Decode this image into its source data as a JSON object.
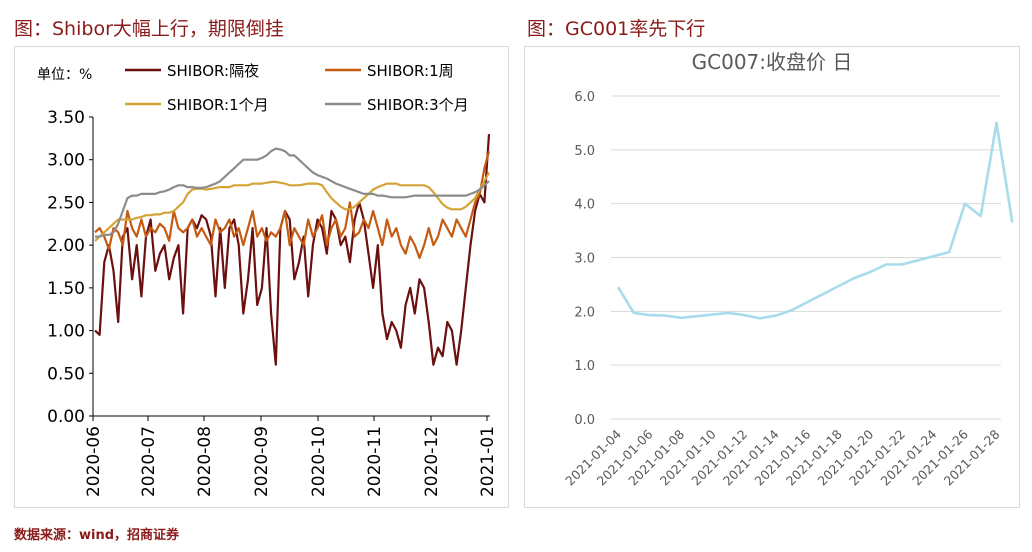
{
  "left_title": "图：Shibor大幅上行，期限倒挂",
  "right_title": "图：GC001率先下行",
  "source": "数据来源：wind，招商证券",
  "chart_data": [
    {
      "type": "line",
      "unit_label": "单位：%",
      "ylim": [
        0,
        3.5
      ],
      "y_ticks": [
        "0.00",
        "0.50",
        "1.00",
        "1.50",
        "2.00",
        "2.50",
        "3.00",
        "3.50"
      ],
      "x_ticks": [
        "2020-06",
        "2020-07",
        "2020-08",
        "2020-09",
        "2020-10",
        "2020-11",
        "2020-12",
        "2021-01"
      ],
      "legend": "top",
      "series": [
        {
          "name": "SHIBOR:隔夜",
          "color": "#6b0f0f",
          "values": [
            1.0,
            0.95,
            1.8,
            2.0,
            1.7,
            1.1,
            2.1,
            2.2,
            1.6,
            2.0,
            1.4,
            2.1,
            2.3,
            1.7,
            1.9,
            2.0,
            1.6,
            1.85,
            2.0,
            1.2,
            2.2,
            2.3,
            2.2,
            2.35,
            2.3,
            2.1,
            1.4,
            2.2,
            1.5,
            2.2,
            2.3,
            2.0,
            1.2,
            1.6,
            2.2,
            1.3,
            1.5,
            2.2,
            1.2,
            0.6,
            2.2,
            2.4,
            2.3,
            1.6,
            1.8,
            2.1,
            1.4,
            2.0,
            2.3,
            2.2,
            1.9,
            2.4,
            2.3,
            2.0,
            2.1,
            1.8,
            2.3,
            2.5,
            2.3,
            1.9,
            1.5,
            2.0,
            1.2,
            0.9,
            1.1,
            1.0,
            0.8,
            1.3,
            1.5,
            1.2,
            1.6,
            1.5,
            1.1,
            0.6,
            0.8,
            0.7,
            1.1,
            1.0,
            0.6,
            1.0,
            1.5,
            2.0,
            2.4,
            2.6,
            2.5,
            3.3
          ]
        },
        {
          "name": "SHIBOR:1周",
          "color": "#c55a11",
          "values": [
            2.15,
            2.2,
            2.1,
            1.95,
            2.2,
            2.15,
            2.0,
            2.4,
            2.2,
            2.1,
            2.3,
            2.1,
            2.2,
            2.15,
            2.25,
            2.2,
            2.05,
            2.4,
            2.2,
            2.15,
            2.2,
            2.3,
            2.1,
            2.2,
            2.1,
            2.0,
            2.3,
            2.15,
            2.2,
            2.3,
            2.1,
            2.2,
            2.0,
            2.2,
            2.4,
            2.1,
            2.2,
            2.05,
            2.15,
            2.1,
            2.2,
            2.4,
            2.0,
            2.2,
            2.1,
            2.0,
            2.3,
            2.1,
            2.2,
            2.35,
            2.0,
            2.2,
            2.3,
            2.1,
            2.2,
            2.5,
            2.1,
            2.15,
            2.3,
            2.2,
            2.4,
            2.2,
            2.0,
            2.3,
            2.1,
            2.2,
            2.0,
            1.9,
            2.1,
            2.0,
            1.85,
            2.0,
            2.2,
            2.0,
            2.1,
            2.3,
            2.2,
            2.1,
            2.3,
            2.2,
            2.1,
            2.3,
            2.5,
            2.6,
            2.9,
            3.1
          ]
        },
        {
          "name": "SHIBOR:1个月",
          "color": "#d4a437",
          "values": [
            2.05,
            2.1,
            2.15,
            2.2,
            2.25,
            2.3,
            2.3,
            2.3,
            2.3,
            2.32,
            2.33,
            2.35,
            2.35,
            2.36,
            2.36,
            2.38,
            2.38,
            2.4,
            2.45,
            2.5,
            2.6,
            2.65,
            2.66,
            2.66,
            2.65,
            2.66,
            2.67,
            2.68,
            2.68,
            2.68,
            2.7,
            2.7,
            2.7,
            2.7,
            2.72,
            2.72,
            2.72,
            2.73,
            2.74,
            2.74,
            2.73,
            2.72,
            2.7,
            2.7,
            2.7,
            2.71,
            2.72,
            2.72,
            2.72,
            2.7,
            2.62,
            2.55,
            2.5,
            2.45,
            2.42,
            2.42,
            2.45,
            2.5,
            2.55,
            2.6,
            2.65,
            2.68,
            2.7,
            2.72,
            2.72,
            2.72,
            2.7,
            2.7,
            2.7,
            2.7,
            2.7,
            2.7,
            2.68,
            2.62,
            2.55,
            2.48,
            2.44,
            2.42,
            2.42,
            2.42,
            2.45,
            2.5,
            2.55,
            2.65,
            2.75,
            2.85
          ]
        },
        {
          "name": "SHIBOR:3个月",
          "color": "#8c8c8c",
          "values": [
            2.1,
            2.1,
            2.12,
            2.12,
            2.15,
            2.25,
            2.4,
            2.55,
            2.58,
            2.58,
            2.6,
            2.6,
            2.6,
            2.6,
            2.62,
            2.63,
            2.65,
            2.68,
            2.7,
            2.7,
            2.68,
            2.68,
            2.67,
            2.67,
            2.68,
            2.7,
            2.72,
            2.75,
            2.8,
            2.85,
            2.9,
            2.95,
            3.0,
            3.0,
            3.0,
            3.0,
            3.02,
            3.05,
            3.1,
            3.13,
            3.12,
            3.1,
            3.05,
            3.05,
            3.0,
            2.95,
            2.9,
            2.85,
            2.82,
            2.8,
            2.78,
            2.75,
            2.72,
            2.7,
            2.68,
            2.66,
            2.64,
            2.62,
            2.6,
            2.6,
            2.6,
            2.58,
            2.58,
            2.57,
            2.56,
            2.56,
            2.56,
            2.56,
            2.57,
            2.58,
            2.58,
            2.58,
            2.58,
            2.58,
            2.58,
            2.58,
            2.58,
            2.58,
            2.58,
            2.58,
            2.58,
            2.6,
            2.62,
            2.65,
            2.7,
            2.75
          ]
        }
      ]
    },
    {
      "type": "line",
      "title": "GC007:收盘价 日",
      "ylim": [
        0,
        6
      ],
      "y_ticks": [
        "0.0",
        "1.0",
        "2.0",
        "3.0",
        "4.0",
        "5.0",
        "6.0"
      ],
      "x_ticks": [
        "2021-01-04",
        "2021-01-06",
        "2021-01-08",
        "2021-01-10",
        "2021-01-12",
        "2021-01-14",
        "2021-01-16",
        "2021-01-18",
        "2021-01-20",
        "2021-01-22",
        "2021-01-24",
        "2021-01-26",
        "2021-01-28"
      ],
      "series": [
        {
          "color": "#a8dcea",
          "x": [
            "2021-01-04",
            "2021-01-05",
            "2021-01-06",
            "2021-01-07",
            "2021-01-08",
            "2021-01-11",
            "2021-01-12",
            "2021-01-13",
            "2021-01-14",
            "2021-01-15",
            "2021-01-18",
            "2021-01-19",
            "2021-01-20",
            "2021-01-21",
            "2021-01-22",
            "2021-01-25",
            "2021-01-26",
            "2021-01-27",
            "2021-01-28",
            "2021-01-29"
          ],
          "values": [
            2.45,
            1.97,
            1.93,
            1.92,
            1.88,
            1.97,
            1.93,
            1.87,
            1.92,
            2.02,
            2.47,
            2.62,
            2.73,
            2.87,
            2.87,
            3.1,
            4.0,
            3.77,
            5.5,
            3.65
          ]
        }
      ]
    }
  ]
}
